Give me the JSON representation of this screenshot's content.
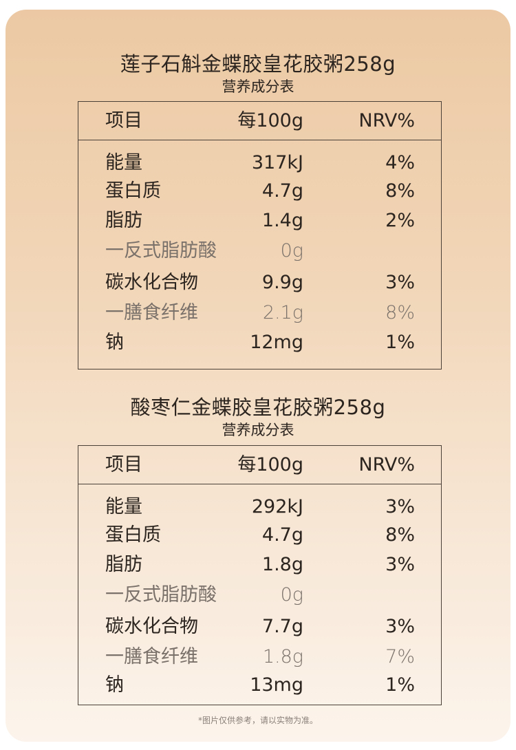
{
  "tables": [
    {
      "title": "莲子石斛金蝶胶皇花胶粥258g",
      "subtitle": "营养成分表",
      "headers": {
        "item": "项目",
        "per100g": "每100g",
        "nrv": "NRV%"
      },
      "rows": [
        {
          "name": "能量",
          "value": "317kJ",
          "nrv": "4%"
        },
        {
          "name": "蛋白质",
          "value": "4.7g",
          "nrv": "8%"
        },
        {
          "name": "脂肪",
          "value": "1.4g",
          "nrv": "2%"
        },
        {
          "name": "一反式脂肪酸",
          "value": "0g",
          "nrv": ""
        },
        {
          "name": "碳水化合物",
          "value": "9.9g",
          "nrv": "3%"
        },
        {
          "name": "一膳食纤维",
          "value": "2.1g",
          "nrv": "8%"
        },
        {
          "name": "钠",
          "value": "12mg",
          "nrv": "1%"
        }
      ]
    },
    {
      "title": "酸枣仁金蝶胶皇花胶粥258g",
      "subtitle": "营养成分表",
      "headers": {
        "item": "项目",
        "per100g": "每100g",
        "nrv": "NRV%"
      },
      "rows": [
        {
          "name": "能量",
          "value": "292kJ",
          "nrv": "3%"
        },
        {
          "name": "蛋白质",
          "value": "4.7g",
          "nrv": "8%"
        },
        {
          "name": "脂肪",
          "value": "1.8g",
          "nrv": "3%"
        },
        {
          "name": "一反式脂肪酸",
          "value": "0g",
          "nrv": ""
        },
        {
          "name": "碳水化合物",
          "value": "7.7g",
          "nrv": "3%"
        },
        {
          "name": "一膳食纤维",
          "value": "1.8g",
          "nrv": "7%"
        },
        {
          "name": "钠",
          "value": "13mg",
          "nrv": "1%"
        }
      ]
    }
  ],
  "footnote": "*图片仅供参考，请以实物为准。"
}
